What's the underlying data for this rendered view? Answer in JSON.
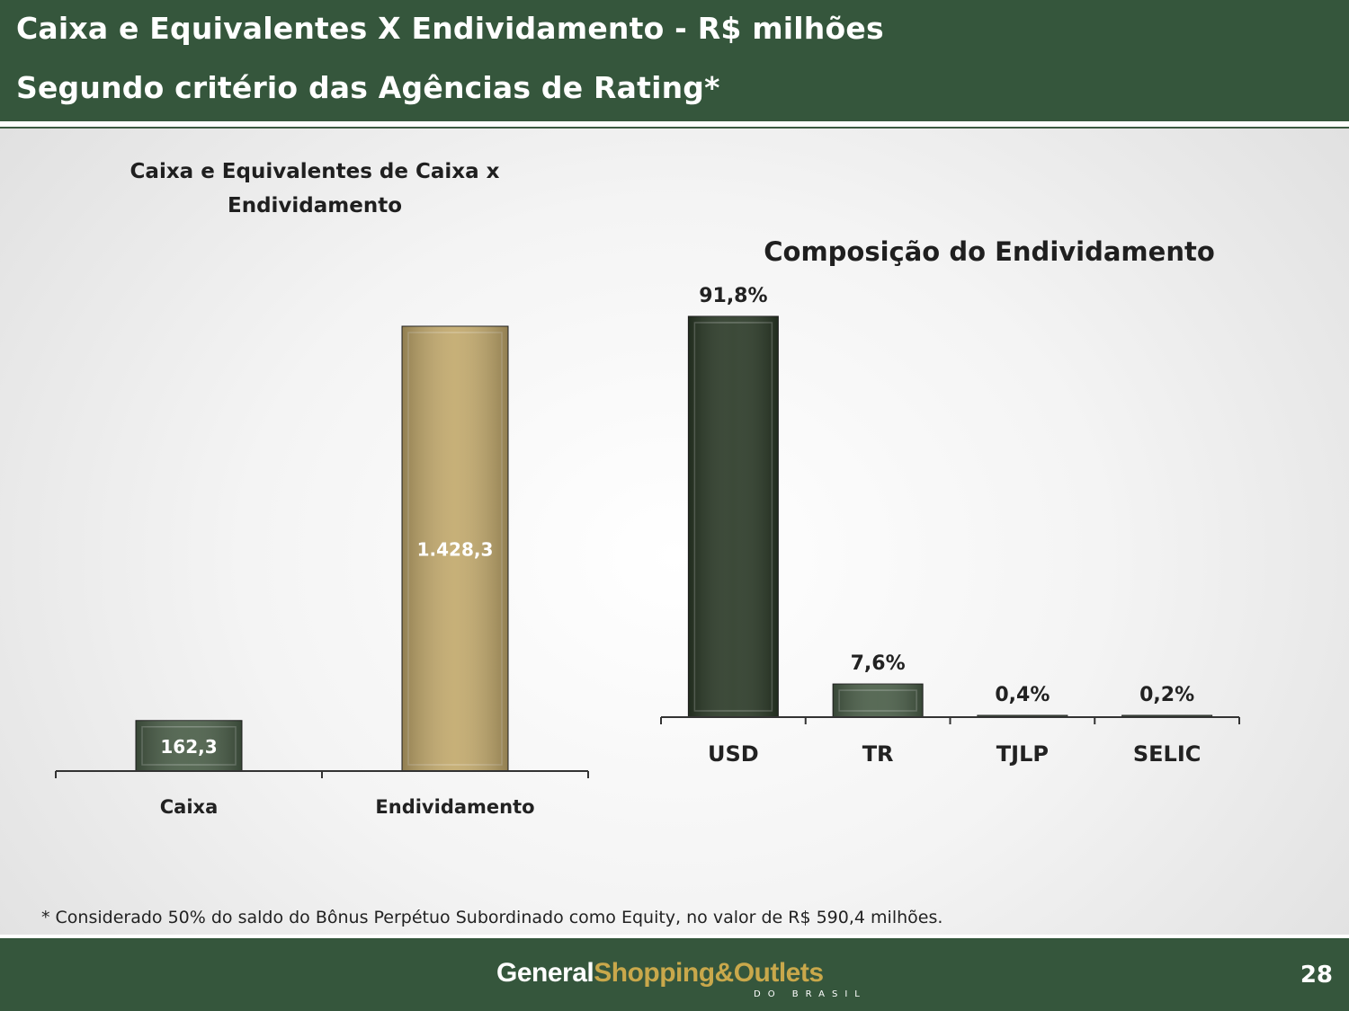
{
  "header": {
    "title": "Caixa e Equivalentes X Endividamento - R$ milhões",
    "subtitle": "Segundo critério das Agências de Rating*"
  },
  "chart_data": [
    {
      "type": "bar",
      "title_lines": [
        "Caixa e Equivalentes de Caixa x",
        "Endividamento"
      ],
      "categories": [
        "Caixa",
        "Endividamento"
      ],
      "values": [
        162.3,
        1428.3
      ],
      "data_labels": [
        "162,3",
        "1.428,3"
      ],
      "colors": [
        "#4a5e48",
        "#c2a96c"
      ],
      "ylim": [
        0,
        1428.3
      ],
      "grid": false,
      "legend": "none"
    },
    {
      "type": "bar",
      "title": "Composição do Endividamento",
      "categories": [
        "USD",
        "TR",
        "TJLP",
        "SELIC"
      ],
      "values": [
        91.8,
        7.6,
        0.4,
        0.2
      ],
      "data_labels": [
        "91,8%",
        "7,6%",
        "0,4%",
        "0,2%"
      ],
      "colors": [
        "#2b3a27",
        "#4a5e48",
        "#4a5e48",
        "#4a5e48"
      ],
      "ylim": [
        0,
        91.8
      ],
      "grid": false,
      "legend": "none"
    }
  ],
  "footnote": "* Considerado 50% do saldo do Bônus Perpétuo Subordinado como Equity, no valor de R$ 590,4 milhões.",
  "footer": {
    "logo_general": "General",
    "logo_shopping": "Shopping&Outlets",
    "logo_sub": "DO BRASIL",
    "page_number": "28"
  }
}
